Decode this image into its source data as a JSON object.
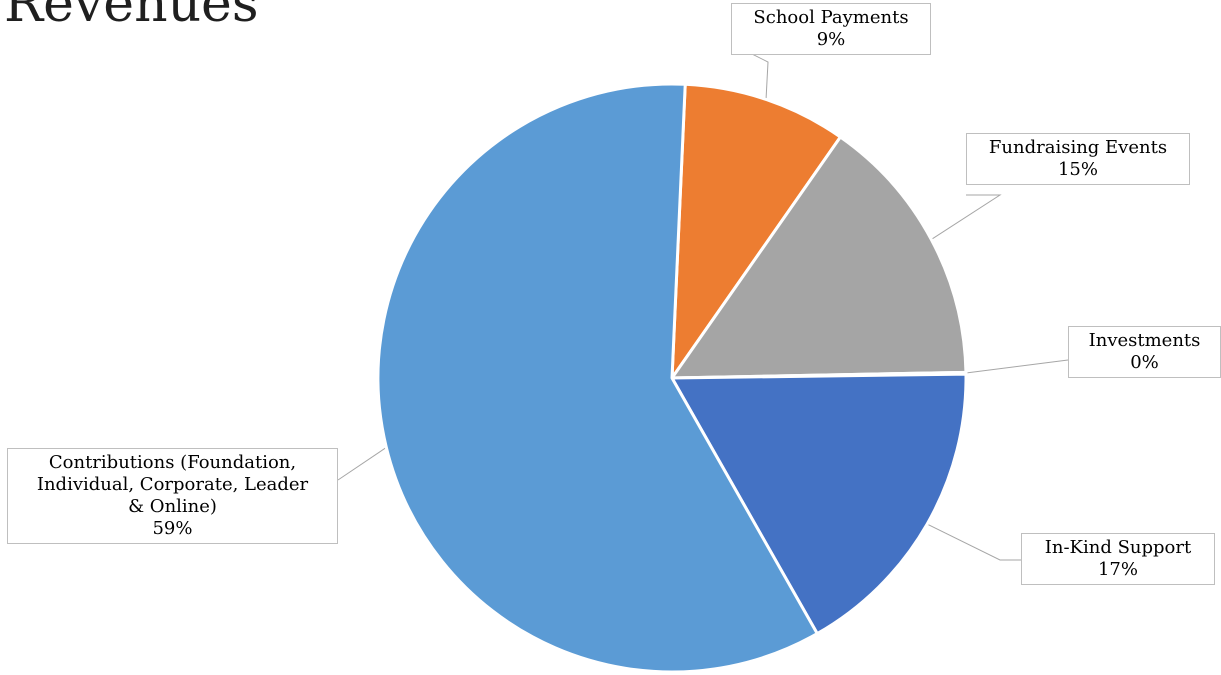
{
  "chart_data": {
    "type": "pie",
    "title": "Revenues",
    "slices": [
      {
        "name": "School Payments",
        "value": 9,
        "label": "9%",
        "color": "#ED7D31"
      },
      {
        "name": "Fundraising Events",
        "value": 15,
        "label": "15%",
        "color": "#A5A5A5"
      },
      {
        "name": "Investments",
        "value": 0.1,
        "label": "0%",
        "color": "#FFC000"
      },
      {
        "name": "In-Kind Support",
        "value": 17,
        "label": "17%",
        "color": "#4472C4"
      },
      {
        "name": "Contributions (Foundation, Individual, Corporate, Leader & Online)",
        "value": 59,
        "label": "59%",
        "color": "#5B9BD5"
      }
    ],
    "name_lines": {
      "contributions": [
        "Contributions (Foundation,",
        "Individual, Corporate, Leader",
        "& Online)"
      ]
    }
  }
}
